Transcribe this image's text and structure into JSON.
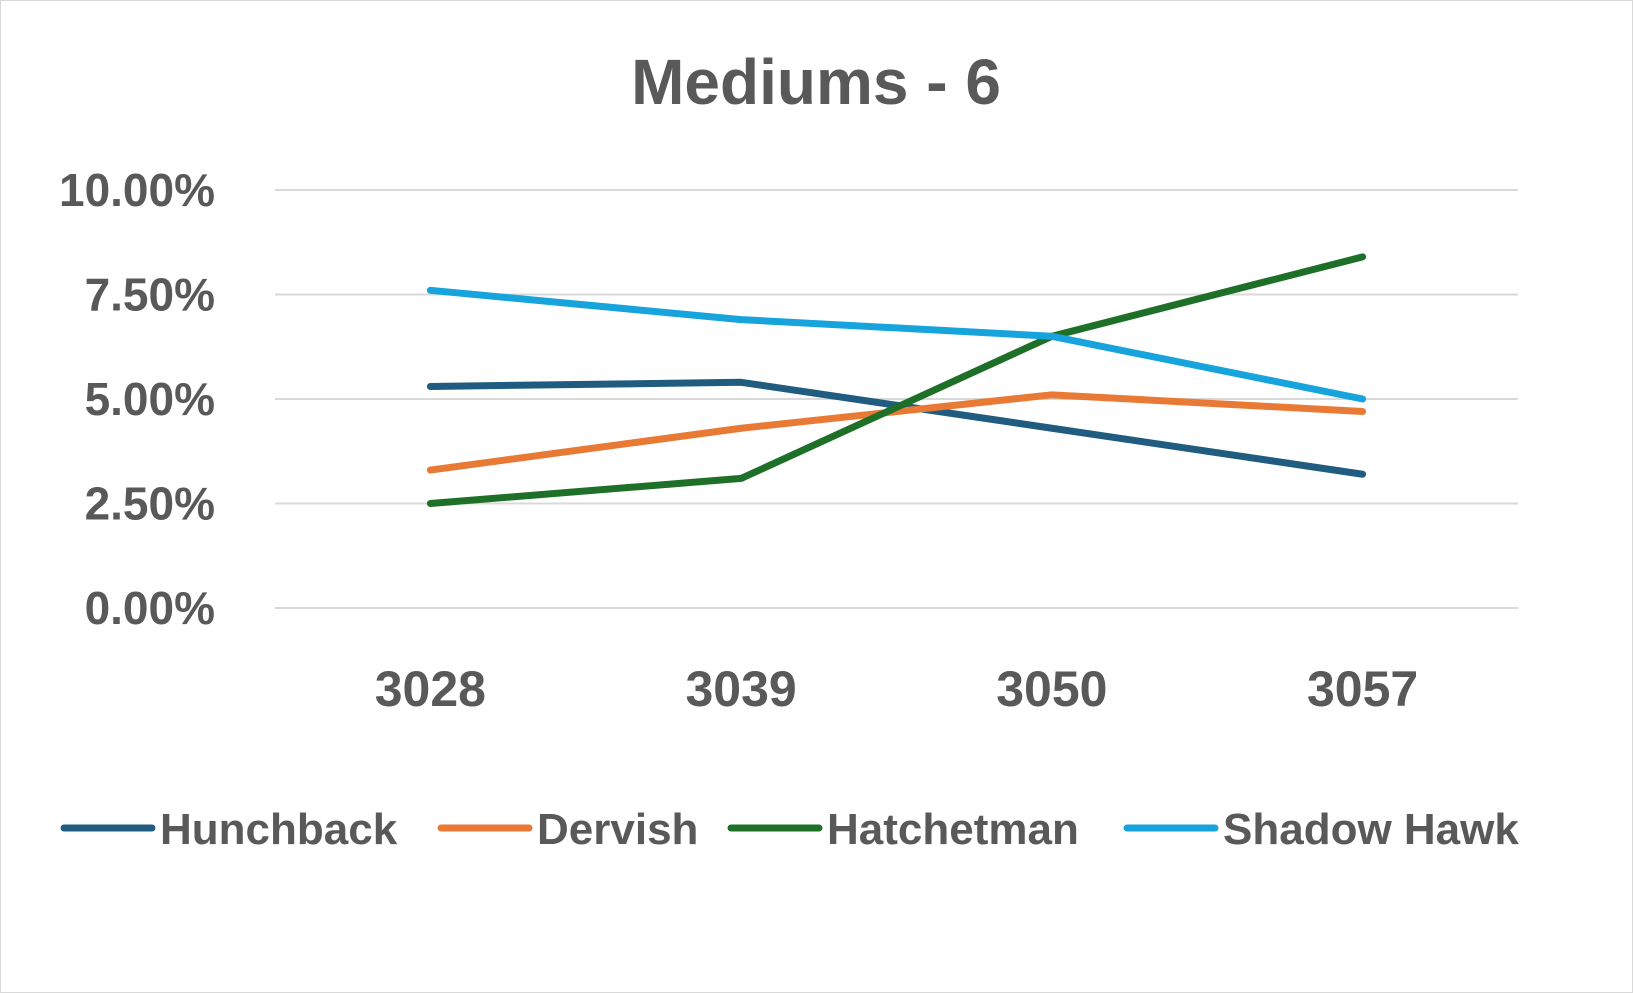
{
  "chart_data": {
    "type": "line",
    "title": "Mediums - 6",
    "xlabel": "",
    "ylabel": "",
    "categories": [
      "3028",
      "3039",
      "3050",
      "3057"
    ],
    "ylim": [
      0,
      0.1
    ],
    "yticks": [
      0,
      0.025,
      0.05,
      0.075,
      0.1
    ],
    "ytick_labels": [
      "0.00%",
      "2.50%",
      "5.00%",
      "7.50%",
      "10.00%"
    ],
    "grid": "horizontal",
    "legend_position": "bottom",
    "series": [
      {
        "name": "Hunchback",
        "color": "#1f5c80",
        "values": [
          0.053,
          0.054,
          0.043,
          0.032
        ]
      },
      {
        "name": "Dervish",
        "color": "#e97a36",
        "values": [
          0.033,
          0.043,
          0.051,
          0.047
        ]
      },
      {
        "name": "Hatchetman",
        "color": "#1e7028",
        "values": [
          0.025,
          0.031,
          0.065,
          0.084
        ]
      },
      {
        "name": "Shadow Hawk",
        "color": "#17a3dc",
        "values": [
          0.076,
          0.069,
          0.065,
          0.05
        ]
      }
    ]
  }
}
